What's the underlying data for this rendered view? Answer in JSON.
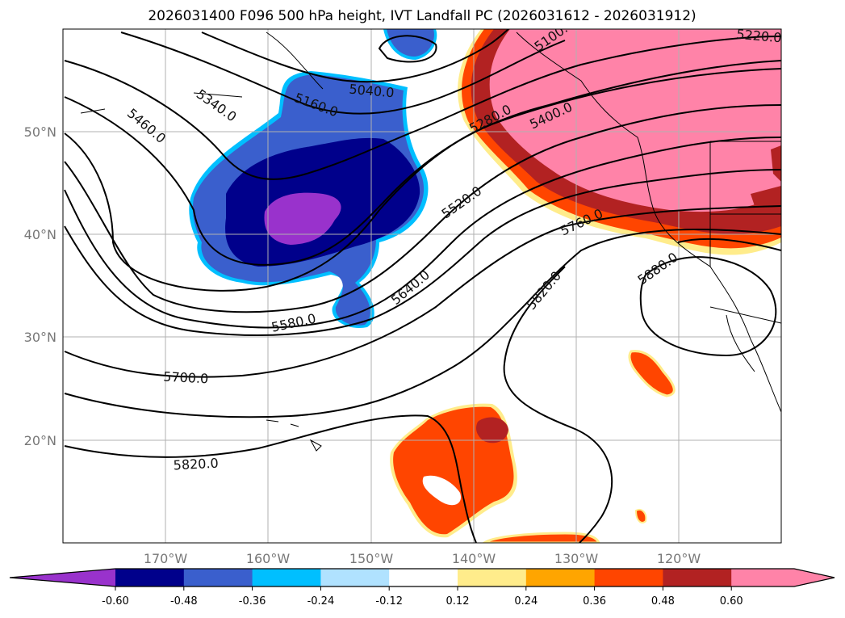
{
  "title": "2026031400 F096 500 hPa height, IVT Landfall PC (2026031612 - 2026031912)",
  "map": {
    "lon_ticks": [
      "170°W",
      "160°W",
      "150°W",
      "140°W",
      "130°W",
      "120°W"
    ],
    "lat_ticks": [
      "50°N",
      "40°N",
      "30°N",
      "20°N"
    ],
    "contour_labels": [
      "5040.0",
      "5160.0",
      "5340.0",
      "5460.0",
      "5100.0",
      "5220.0",
      "5280.0",
      "5400.0",
      "5520.0",
      "5640.0",
      "5580.0",
      "5760.0",
      "5880.0",
      "5820.0",
      "5700.0",
      "5820.0"
    ]
  },
  "colorbar": {
    "colors": [
      "#9932CC",
      "#00008B",
      "#3A5FCD",
      "#00BFFF",
      "#B0E2FF",
      "#FFFFFF",
      "#FFEC8B",
      "#FFA500",
      "#FF4500",
      "#B22222",
      "#FF83A8"
    ],
    "labels": [
      "-0.60",
      "-0.48",
      "-0.36",
      "-0.24",
      "-0.12",
      "0.12",
      "0.24",
      "0.36",
      "0.48",
      "0.60"
    ]
  }
}
